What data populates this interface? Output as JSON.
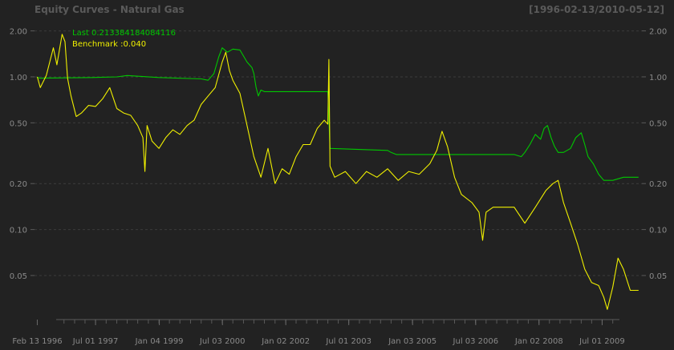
{
  "chart_data": {
    "type": "line",
    "title": "Equity Curves - Natural Gas",
    "date_range_label": "[1996-02-13/2010-05-12]",
    "y_scale": "log",
    "ylim": [
      0.028,
      2.3
    ],
    "xlim": [
      "1996-01-20",
      "2010-06-10"
    ],
    "y_ticks": [
      0.05,
      0.1,
      0.2,
      0.5,
      1.0,
      2.0
    ],
    "y_tick_labels": [
      "0.05",
      "0.10",
      "0.20",
      "0.50",
      "1.00",
      "2.00"
    ],
    "x_tick_labels": [
      {
        "date": "1996-02-13",
        "label": "Feb 13 1996"
      },
      {
        "date": "1997-07-01",
        "label": "Jul 01 1997"
      },
      {
        "date": "1999-01-04",
        "label": "Jan 04 1999"
      },
      {
        "date": "2000-07-03",
        "label": "Jul 03 2000"
      },
      {
        "date": "2002-01-02",
        "label": "Jan 02 2002"
      },
      {
        "date": "2003-07-01",
        "label": "Jul 01 2003"
      },
      {
        "date": "2005-01-03",
        "label": "Jan 03 2005"
      },
      {
        "date": "2006-07-03",
        "label": "Jul 03 2006"
      },
      {
        "date": "2008-01-02",
        "label": "Jan 02 2008"
      },
      {
        "date": "2009-07-01",
        "label": "Jul 01 2009"
      }
    ],
    "legend": [
      "Last 0.213384184084116",
      "Benchmark :0.040"
    ],
    "grid": "horizontal dashed",
    "series": [
      {
        "color": "#00c800",
        "points": [
          [
            "1996-02-13",
            1.0
          ],
          [
            "1996-03-01",
            0.98
          ],
          [
            "1997-06-01",
            0.99
          ],
          [
            "1998-01-01",
            1.0
          ],
          [
            "1998-04-01",
            1.02
          ],
          [
            "1999-01-01",
            0.99
          ],
          [
            "2000-01-01",
            0.97
          ],
          [
            "2000-03-01",
            0.95
          ],
          [
            "2000-04-20",
            1.05
          ],
          [
            "2000-06-01",
            1.35
          ],
          [
            "2000-07-01",
            1.55
          ],
          [
            "2000-08-15",
            1.45
          ],
          [
            "2000-10-01",
            1.52
          ],
          [
            "2000-12-01",
            1.5
          ],
          [
            "2001-02-01",
            1.25
          ],
          [
            "2001-03-15",
            1.15
          ],
          [
            "2001-04-01",
            1.05
          ],
          [
            "2001-04-20",
            0.85
          ],
          [
            "2001-05-10",
            0.75
          ],
          [
            "2001-06-01",
            0.82
          ],
          [
            "2001-07-01",
            0.8
          ],
          [
            "2002-03-01",
            0.8
          ],
          [
            "2003-01-01",
            0.8
          ],
          [
            "2003-01-20",
            0.34
          ],
          [
            "2004-06-01",
            0.33
          ],
          [
            "2004-07-01",
            0.32
          ],
          [
            "2004-08-15",
            0.31
          ],
          [
            "2005-01-01",
            0.31
          ],
          [
            "2005-06-01",
            0.31
          ],
          [
            "2007-06-01",
            0.31
          ],
          [
            "2007-08-01",
            0.3
          ],
          [
            "2007-09-01",
            0.32
          ],
          [
            "2007-10-15",
            0.36
          ],
          [
            "2007-12-01",
            0.42
          ],
          [
            "2008-01-15",
            0.39
          ],
          [
            "2008-02-15",
            0.46
          ],
          [
            "2008-03-15",
            0.48
          ],
          [
            "2008-04-15",
            0.4
          ],
          [
            "2008-05-15",
            0.35
          ],
          [
            "2008-06-15",
            0.32
          ],
          [
            "2008-08-01",
            0.32
          ],
          [
            "2008-10-01",
            0.34
          ],
          [
            "2008-11-15",
            0.4
          ],
          [
            "2009-01-01",
            0.43
          ],
          [
            "2009-02-01",
            0.36
          ],
          [
            "2009-03-01",
            0.3
          ],
          [
            "2009-04-15",
            0.27
          ],
          [
            "2009-06-01",
            0.23
          ],
          [
            "2009-07-15",
            0.21
          ],
          [
            "2009-10-01",
            0.21
          ],
          [
            "2010-01-01",
            0.22
          ],
          [
            "2010-05-12",
            0.22
          ]
        ]
      },
      {
        "color": "#f0f000",
        "points": [
          [
            "1996-02-13",
            1.0
          ],
          [
            "1996-03-10",
            0.85
          ],
          [
            "1996-05-01",
            1.02
          ],
          [
            "1996-07-01",
            1.55
          ],
          [
            "1996-08-01",
            1.2
          ],
          [
            "1996-09-15",
            1.9
          ],
          [
            "1996-10-10",
            1.7
          ],
          [
            "1996-11-01",
            0.98
          ],
          [
            "1996-12-01",
            0.75
          ],
          [
            "1997-01-15",
            0.55
          ],
          [
            "1997-03-01",
            0.58
          ],
          [
            "1997-05-01",
            0.65
          ],
          [
            "1997-07-01",
            0.64
          ],
          [
            "1997-09-01",
            0.72
          ],
          [
            "1997-11-01",
            0.85
          ],
          [
            "1998-01-01",
            0.62
          ],
          [
            "1998-03-01",
            0.58
          ],
          [
            "1998-05-01",
            0.56
          ],
          [
            "1998-07-01",
            0.48
          ],
          [
            "1998-08-15",
            0.4
          ],
          [
            "1998-09-01",
            0.24
          ],
          [
            "1998-09-20",
            0.48
          ],
          [
            "1998-11-01",
            0.38
          ],
          [
            "1999-01-01",
            0.34
          ],
          [
            "1999-03-01",
            0.4
          ],
          [
            "1999-05-01",
            0.45
          ],
          [
            "1999-07-01",
            0.42
          ],
          [
            "1999-09-01",
            0.48
          ],
          [
            "1999-11-01",
            0.52
          ],
          [
            "2000-01-01",
            0.66
          ],
          [
            "2000-03-01",
            0.75
          ],
          [
            "2000-05-01",
            0.85
          ],
          [
            "2000-07-01",
            1.25
          ],
          [
            "2000-08-01",
            1.45
          ],
          [
            "2000-09-01",
            1.1
          ],
          [
            "2000-10-01",
            0.95
          ],
          [
            "2000-12-01",
            0.78
          ],
          [
            "2001-02-01",
            0.48
          ],
          [
            "2001-04-01",
            0.3
          ],
          [
            "2001-06-01",
            0.22
          ],
          [
            "2001-08-01",
            0.34
          ],
          [
            "2001-10-01",
            0.2
          ],
          [
            "2001-12-01",
            0.25
          ],
          [
            "2002-02-01",
            0.23
          ],
          [
            "2002-04-01",
            0.3
          ],
          [
            "2002-06-01",
            0.36
          ],
          [
            "2002-08-01",
            0.36
          ],
          [
            "2002-10-01",
            0.46
          ],
          [
            "2002-12-01",
            0.52
          ],
          [
            "2003-01-01",
            0.49
          ],
          [
            "2003-01-10",
            1.3
          ],
          [
            "2003-01-20",
            0.26
          ],
          [
            "2003-03-01",
            0.22
          ],
          [
            "2003-06-01",
            0.24
          ],
          [
            "2003-09-01",
            0.2
          ],
          [
            "2003-12-01",
            0.24
          ],
          [
            "2004-03-01",
            0.22
          ],
          [
            "2004-06-01",
            0.25
          ],
          [
            "2004-09-01",
            0.21
          ],
          [
            "2004-12-01",
            0.24
          ],
          [
            "2005-03-01",
            0.23
          ],
          [
            "2005-06-01",
            0.27
          ],
          [
            "2005-08-01",
            0.33
          ],
          [
            "2005-09-15",
            0.44
          ],
          [
            "2005-11-01",
            0.35
          ],
          [
            "2006-01-01",
            0.22
          ],
          [
            "2006-03-01",
            0.17
          ],
          [
            "2006-06-01",
            0.15
          ],
          [
            "2006-08-01",
            0.13
          ],
          [
            "2006-09-01",
            0.085
          ],
          [
            "2006-10-01",
            0.13
          ],
          [
            "2006-12-01",
            0.14
          ],
          [
            "2007-03-01",
            0.14
          ],
          [
            "2007-06-01",
            0.14
          ],
          [
            "2007-09-01",
            0.11
          ],
          [
            "2007-12-01",
            0.14
          ],
          [
            "2008-03-01",
            0.18
          ],
          [
            "2008-05-01",
            0.2
          ],
          [
            "2008-06-15",
            0.21
          ],
          [
            "2008-08-01",
            0.15
          ],
          [
            "2008-10-01",
            0.11
          ],
          [
            "2008-12-01",
            0.08
          ],
          [
            "2009-02-01",
            0.055
          ],
          [
            "2009-04-01",
            0.045
          ],
          [
            "2009-06-01",
            0.043
          ],
          [
            "2009-07-15",
            0.036
          ],
          [
            "2009-08-15",
            0.03
          ],
          [
            "2009-10-01",
            0.042
          ],
          [
            "2009-11-15",
            0.065
          ],
          [
            "2010-01-01",
            0.055
          ],
          [
            "2010-03-01",
            0.04
          ],
          [
            "2010-05-12",
            0.04
          ]
        ]
      }
    ]
  }
}
